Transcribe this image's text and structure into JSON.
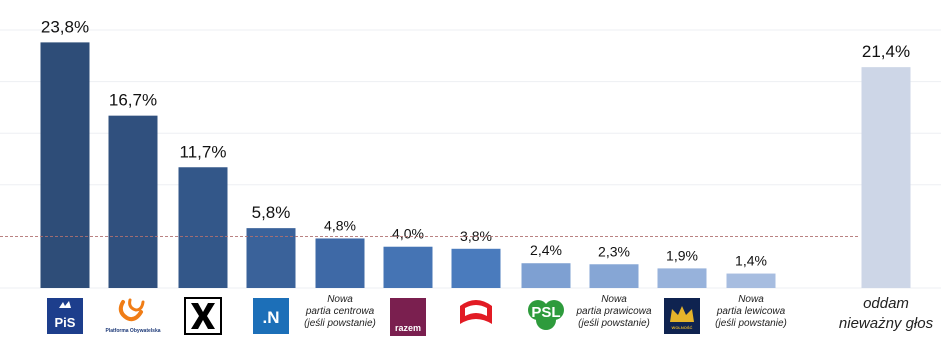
{
  "chart_data": {
    "type": "bar",
    "y_range": [
      0,
      25
    ],
    "grid": true,
    "threshold_line": 5,
    "categories": [
      {
        "logo": "pis-logo",
        "logo_text": "PiS",
        "value": 23.8,
        "value_label": "23,8%",
        "color": "#2E4D78"
      },
      {
        "logo": "platforma-obywatelska-logo",
        "logo_text": "Platforma Obywatelska",
        "value": 16.7,
        "value_label": "16,7%",
        "color": "#30507E"
      },
      {
        "logo": "kukiz-logo",
        "logo_text": "K",
        "value": 11.7,
        "value_label": "11,7%",
        "color": "#335789"
      },
      {
        "logo": "nowoczesna-logo",
        "logo_text": ".N",
        "value": 5.8,
        "value_label": "5,8%",
        "color": "#3A629A"
      },
      {
        "label": [
          "Nowa",
          "partia centrowa",
          "(jeśli powstanie)"
        ],
        "value": 4.8,
        "value_label": "4,8%",
        "color": "#3E69A6"
      },
      {
        "logo": "razem-logo",
        "logo_text": "razem",
        "value": 4.0,
        "value_label": "4,0%",
        "color": "#4574B4"
      },
      {
        "logo": "sld-logo",
        "value": 3.8,
        "value_label": "3,8%",
        "color": "#4A7BBD"
      },
      {
        "logo": "psl-logo",
        "logo_text": "PSL",
        "value": 2.4,
        "value_label": "2,4%",
        "color": "#7EA0D2"
      },
      {
        "label": [
          "Nowa",
          "partia prawicowa",
          "(jeśli powstanie)"
        ],
        "value": 2.3,
        "value_label": "2,3%",
        "color": "#86A6D5"
      },
      {
        "logo": "wolnosc-logo",
        "logo_text": "WOLNOŚĆ",
        "value": 1.9,
        "value_label": "1,9%",
        "color": "#97B2DB"
      },
      {
        "label": [
          "Nowa",
          "partia lewicowa",
          "(jeśli powstanie)"
        ],
        "value": 1.4,
        "value_label": "1,4%",
        "color": "#A7BDE0"
      },
      {
        "label": [
          "oddam",
          "nieważny głos"
        ],
        "value": 21.4,
        "value_label": "21,4%",
        "color": "#CDD6E7"
      }
    ]
  }
}
